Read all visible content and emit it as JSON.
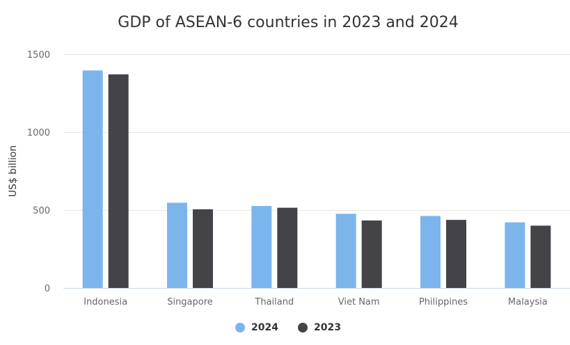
{
  "chart_data": {
    "type": "bar",
    "title": "GDP of ASEAN-6 countries in 2023 and 2024",
    "ylabel": "US$ billion",
    "xlabel": "",
    "categories": [
      "Indonesia",
      "Singapore",
      "Thailand",
      "Viet Nam",
      "Philippines",
      "Malaysia"
    ],
    "series": [
      {
        "name": "2024",
        "color": "#7cb5ec",
        "values": [
          1396,
          547,
          526,
          476,
          462,
          421
        ]
      },
      {
        "name": "2023",
        "color": "#434348",
        "values": [
          1371,
          505,
          515,
          433,
          437,
          400
        ]
      }
    ],
    "ylim": [
      0,
      1500
    ],
    "yticks": [
      0,
      500,
      1000,
      1500
    ],
    "grid": true,
    "legend_position": "bottom-center"
  }
}
